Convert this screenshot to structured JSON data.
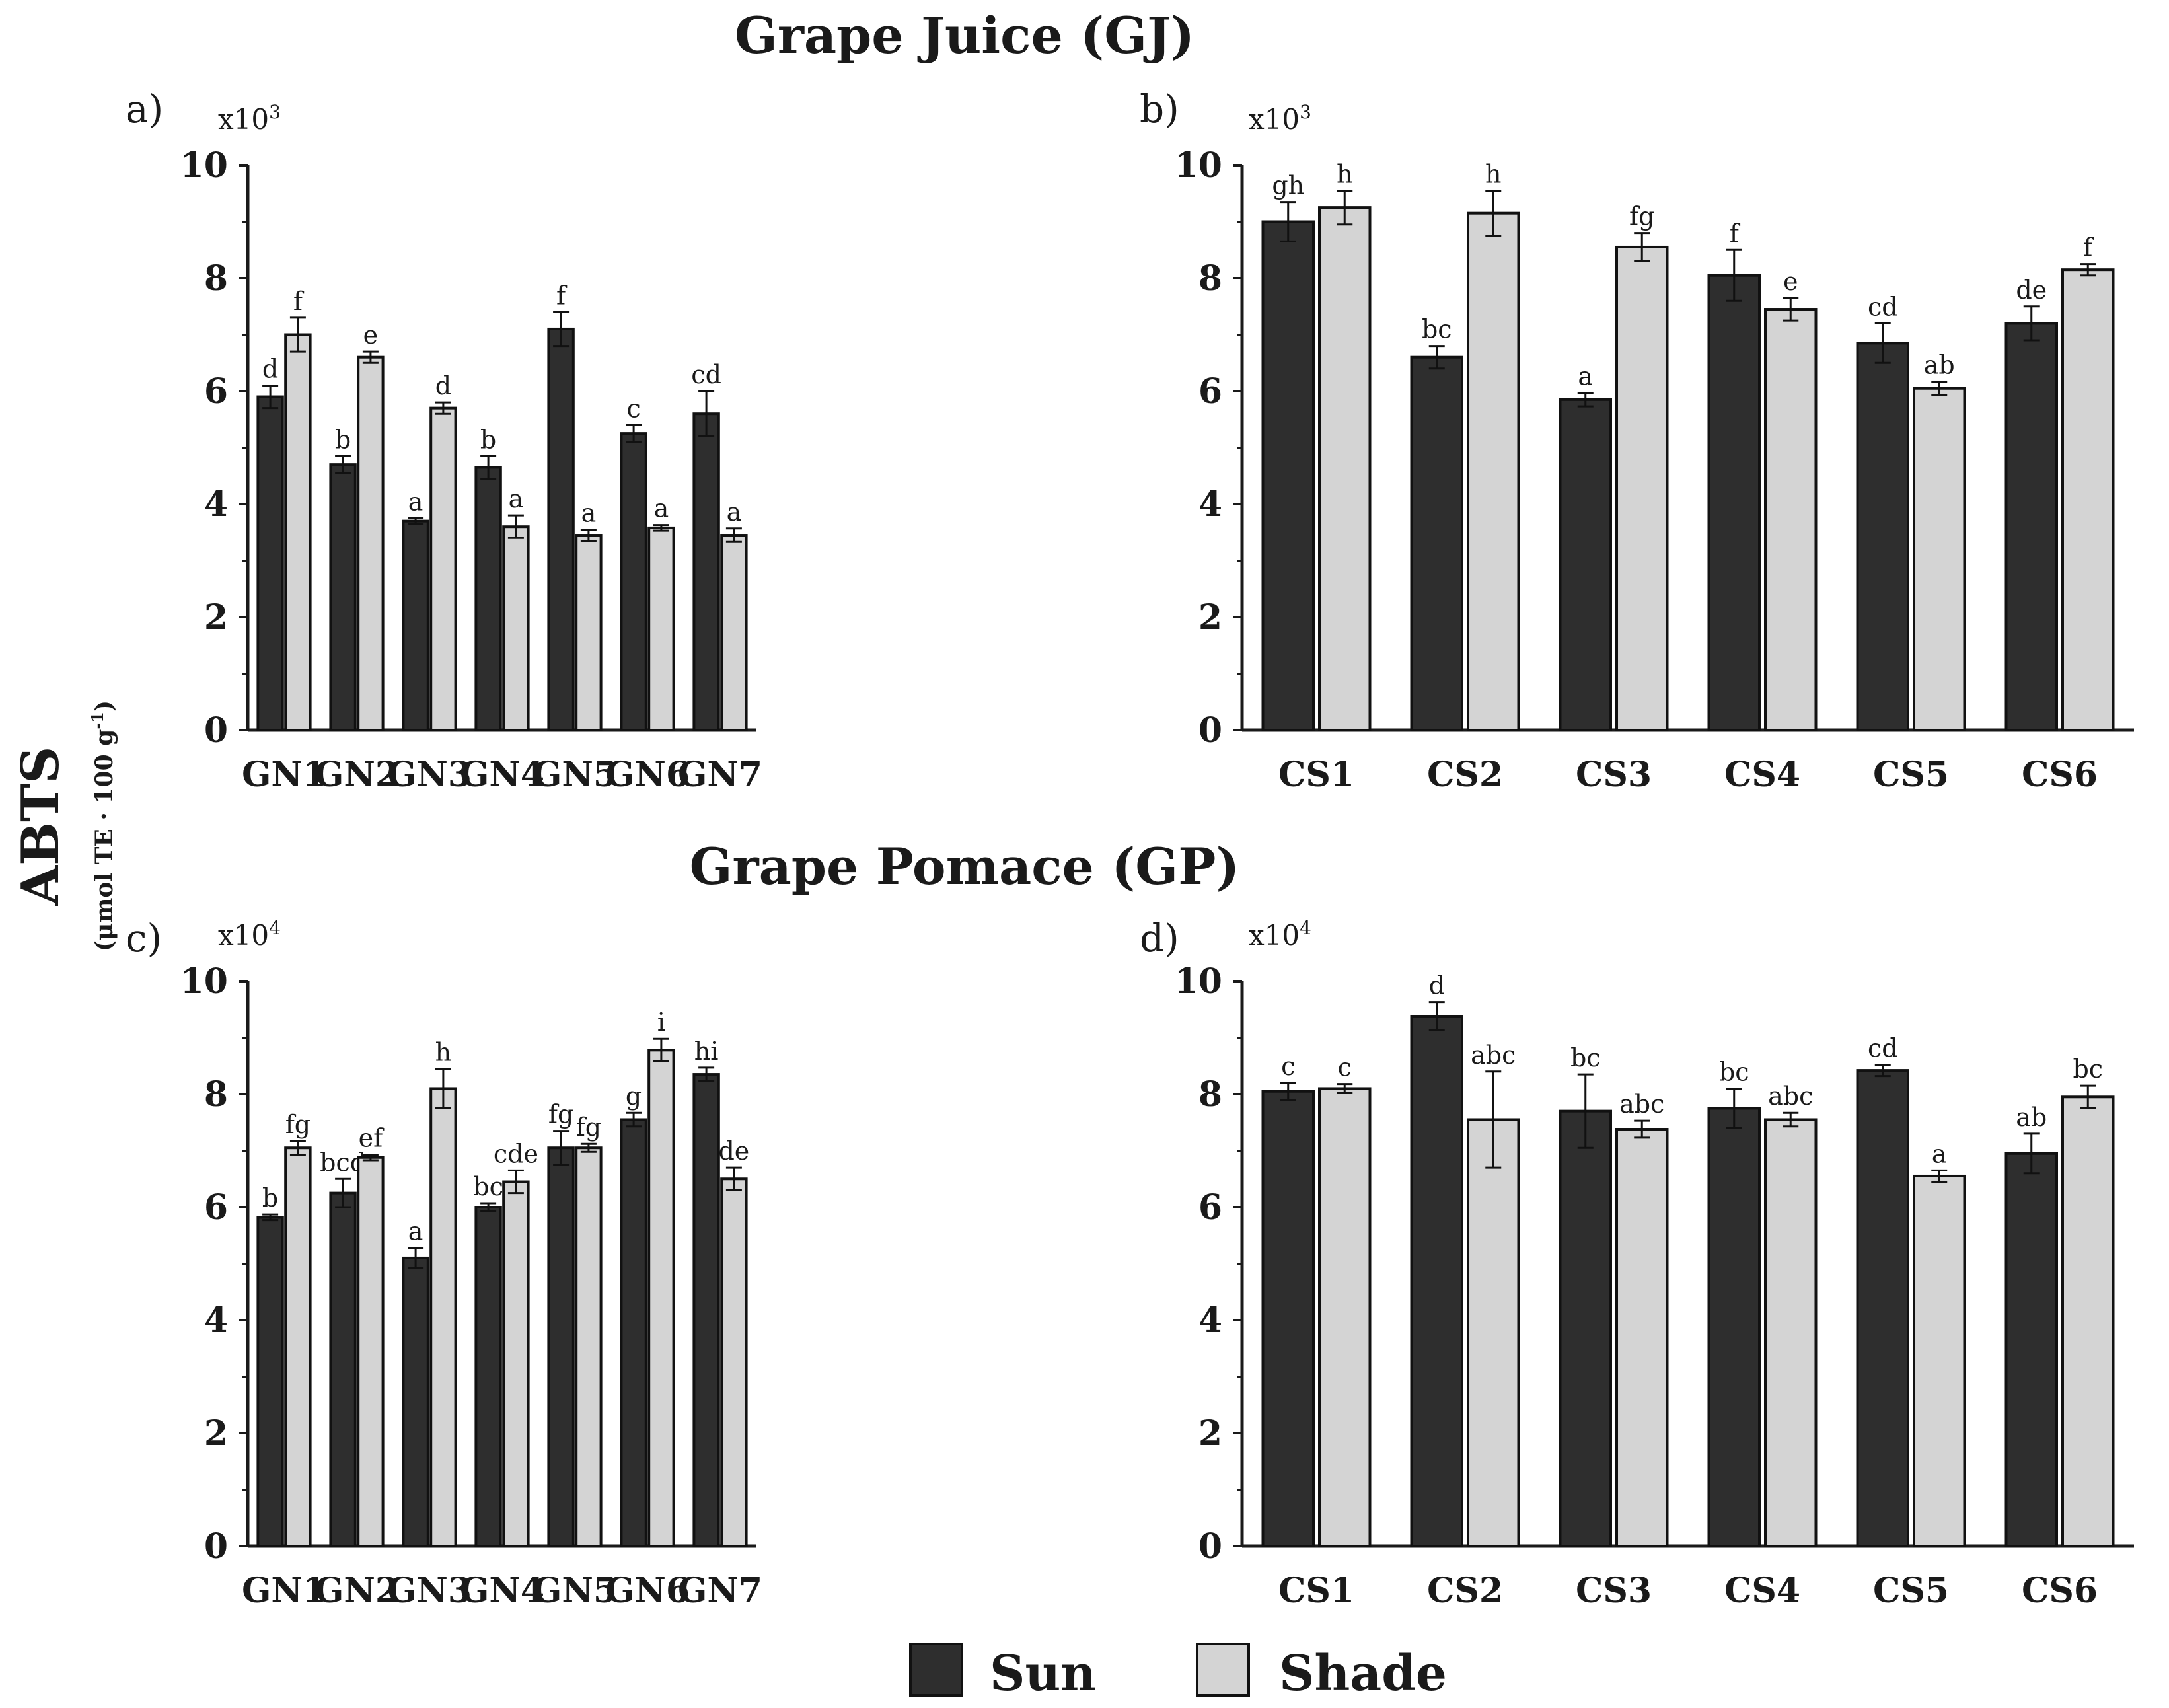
{
  "figure": {
    "ylabel": "ABTS",
    "ylabel_units_prefix": "(μmol TE · 100 g",
    "ylabel_units_sup": "-1",
    "ylabel_units_suffix": ")",
    "top_title": "Grape Juice (GJ)",
    "bottom_title": "Grape Pomace (GP)",
    "legend": [
      {
        "name": "Sun",
        "color": "#2e2e2e"
      },
      {
        "name": "Shade",
        "color": "#d4d4d4"
      }
    ]
  },
  "chart_data": [
    {
      "panel": "a)",
      "type": "bar",
      "scale_base": "x10",
      "scale_exp": "3",
      "ylim": [
        0,
        10
      ],
      "yticks": [
        "0",
        "2",
        "4",
        "6",
        "8",
        "10"
      ],
      "categories": [
        "GN1",
        "GN2",
        "GN3",
        "GN4",
        "GN5",
        "GN6",
        "GN7"
      ],
      "series": [
        {
          "name": "Sun",
          "values": [
            5.9,
            4.7,
            3.7,
            4.65,
            7.1,
            5.25,
            5.6
          ],
          "errors": [
            0.2,
            0.15,
            0.05,
            0.2,
            0.3,
            0.15,
            0.4
          ],
          "letters": [
            "d",
            "b",
            "a",
            "b",
            "f",
            "c",
            "cd"
          ]
        },
        {
          "name": "Shade",
          "values": [
            7.0,
            6.6,
            5.7,
            3.6,
            3.45,
            3.58,
            3.45
          ],
          "errors": [
            0.3,
            0.1,
            0.1,
            0.2,
            0.1,
            0.05,
            0.12
          ],
          "letters": [
            "f",
            "e",
            "d",
            "a",
            "a",
            "a",
            "a"
          ]
        }
      ]
    },
    {
      "panel": "b)",
      "type": "bar",
      "scale_base": "x10",
      "scale_exp": "3",
      "ylim": [
        0,
        10
      ],
      "yticks": [
        "0",
        "2",
        "4",
        "6",
        "8",
        "10"
      ],
      "categories": [
        "CS1",
        "CS2",
        "CS3",
        "CS4",
        "CS5",
        "CS6"
      ],
      "series": [
        {
          "name": "Sun",
          "values": [
            9.0,
            6.6,
            5.85,
            8.05,
            6.85,
            7.2
          ],
          "errors": [
            0.35,
            0.2,
            0.12,
            0.45,
            0.35,
            0.3
          ],
          "letters": [
            "gh",
            "bc",
            "a",
            "f",
            "cd",
            "de"
          ]
        },
        {
          "name": "Shade",
          "values": [
            9.25,
            9.15,
            8.55,
            7.45,
            6.05,
            8.15
          ],
          "errors": [
            0.3,
            0.4,
            0.25,
            0.2,
            0.12,
            0.1
          ],
          "letters": [
            "h",
            "h",
            "fg",
            "e",
            "ab",
            "f"
          ]
        }
      ]
    },
    {
      "panel": "c)",
      "type": "bar",
      "scale_base": "x10",
      "scale_exp": "4",
      "ylim": [
        0,
        10
      ],
      "yticks": [
        "0",
        "2",
        "4",
        "6",
        "8",
        "10"
      ],
      "categories": [
        "GN1",
        "GN2",
        "GN3",
        "GN4",
        "GN5",
        "GN6",
        "GN7"
      ],
      "series": [
        {
          "name": "Sun",
          "values": [
            5.82,
            6.25,
            5.1,
            6.0,
            7.05,
            7.55,
            8.35
          ],
          "errors": [
            0.05,
            0.25,
            0.18,
            0.07,
            0.3,
            0.12,
            0.12
          ],
          "letters": [
            "b",
            "bcd",
            "a",
            "bc",
            "fg",
            "g",
            "hi"
          ]
        },
        {
          "name": "Shade",
          "values": [
            7.05,
            6.88,
            8.1,
            6.45,
            7.05,
            8.78,
            6.5
          ],
          "errors": [
            0.12,
            0.05,
            0.35,
            0.2,
            0.07,
            0.2,
            0.2
          ],
          "letters": [
            "fg",
            "ef",
            "h",
            "cde",
            "fg",
            "i",
            "de"
          ]
        }
      ]
    },
    {
      "panel": "d)",
      "type": "bar",
      "scale_base": "x10",
      "scale_exp": "4",
      "ylim": [
        0,
        10
      ],
      "yticks": [
        "0",
        "2",
        "4",
        "6",
        "8",
        "10"
      ],
      "categories": [
        "CS1",
        "CS2",
        "CS3",
        "CS4",
        "CS5",
        "CS6"
      ],
      "series": [
        {
          "name": "Sun",
          "values": [
            8.05,
            9.38,
            7.7,
            7.75,
            8.42,
            6.95
          ],
          "errors": [
            0.15,
            0.25,
            0.65,
            0.35,
            0.1,
            0.35
          ],
          "letters": [
            "c",
            "d",
            "bc",
            "bc",
            "cd",
            "ab"
          ]
        },
        {
          "name": "Shade",
          "values": [
            8.1,
            7.55,
            7.38,
            7.55,
            6.55,
            7.95
          ],
          "errors": [
            0.08,
            0.85,
            0.15,
            0.12,
            0.1,
            0.2
          ],
          "letters": [
            "c",
            "abc",
            "abc",
            "abc",
            "a",
            "bc"
          ]
        }
      ]
    }
  ]
}
